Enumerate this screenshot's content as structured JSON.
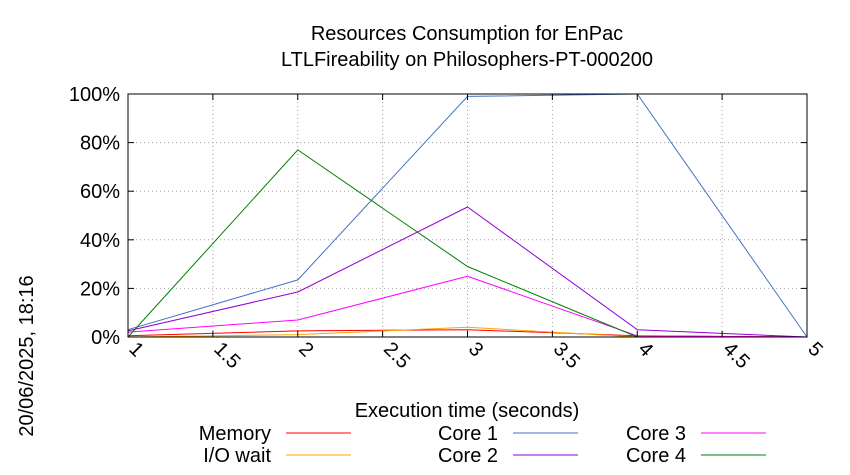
{
  "chart_data": {
    "type": "line",
    "title": "Resources Consumption for EnPac",
    "subtitle": "LTLFireability on Philosophers-PT-000200",
    "xlabel": "Execution time (seconds)",
    "ylabel": "",
    "side_label": "20/06/2025, 18:16",
    "xlim": [
      1,
      5
    ],
    "ylim": [
      0,
      100
    ],
    "x_ticks": [
      1,
      1.5,
      2,
      2.5,
      3,
      3.5,
      4,
      4.5,
      5
    ],
    "x_tick_labels": [
      "1",
      "1.5",
      "2",
      "2.5",
      "3",
      "3.5",
      "4",
      "4.5",
      "5"
    ],
    "y_ticks": [
      0,
      20,
      40,
      60,
      80,
      100
    ],
    "y_tick_labels": [
      "0%",
      "20%",
      "40%",
      "60%",
      "80%",
      "100%"
    ],
    "grid": true,
    "legend_position": "bottom",
    "x": [
      1,
      2,
      3,
      4,
      5
    ],
    "series": [
      {
        "name": "Memory",
        "color": "#ff0000",
        "values": [
          0.5,
          2.5,
          3,
          0.5,
          0
        ]
      },
      {
        "name": "Core 1",
        "color": "#4472c4",
        "values": [
          3,
          23.5,
          99,
          100,
          0
        ]
      },
      {
        "name": "Core 3",
        "color": "#ff00ff",
        "values": [
          2,
          7,
          25,
          0.5,
          0
        ]
      },
      {
        "name": "I/O wait",
        "color": "#ffa500",
        "values": [
          0,
          1,
          4,
          0,
          0
        ]
      },
      {
        "name": "Core 2",
        "color": "#9400d3",
        "values": [
          2.5,
          18.5,
          53.5,
          3,
          0
        ]
      },
      {
        "name": "Core 4",
        "color": "#008000",
        "values": [
          0,
          77,
          29,
          0,
          0
        ]
      }
    ]
  }
}
